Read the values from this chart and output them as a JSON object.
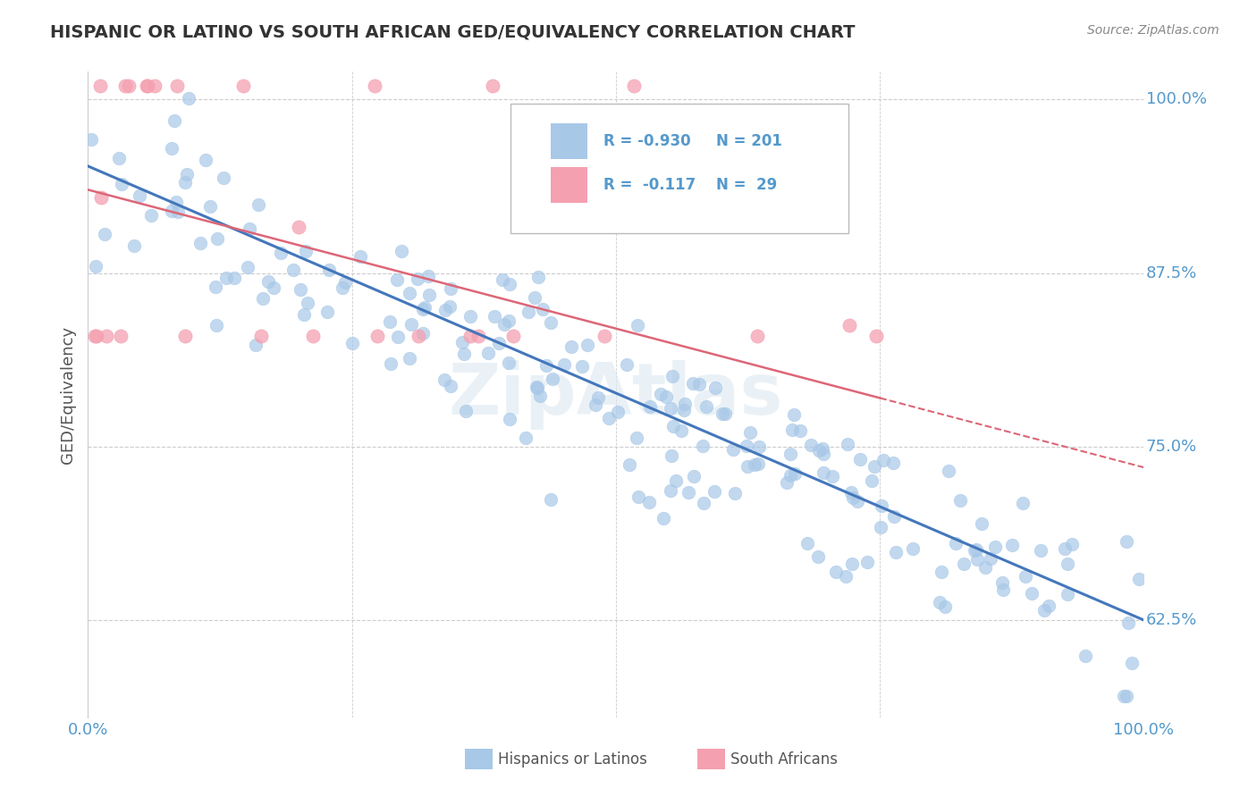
{
  "title": "HISPANIC OR LATINO VS SOUTH AFRICAN GED/EQUIVALENCY CORRELATION CHART",
  "source": "Source: ZipAtlas.com",
  "ylabel": "GED/Equivalency",
  "xlim": [
    0.0,
    1.0
  ],
  "ylim": [
    0.555,
    1.02
  ],
  "yticks": [
    0.625,
    0.75,
    0.875,
    1.0
  ],
  "ytick_labels": [
    "62.5%",
    "75.0%",
    "87.5%",
    "100.0%"
  ],
  "xticks": [
    0.0,
    1.0
  ],
  "xtick_labels": [
    "0.0%",
    "100.0%"
  ],
  "blue_R": "-0.930",
  "blue_N": "201",
  "pink_R": "-0.117",
  "pink_N": "29",
  "blue_color": "#a8c8e8",
  "pink_color": "#f4a0b0",
  "blue_line_color": "#4477bb",
  "pink_line_color": "#dd6677",
  "legend_blue_label": "Hispanics or Latinos",
  "legend_pink_label": "South Africans",
  "title_color": "#333333",
  "axis_label_color": "#5599cc",
  "background_color": "#ffffff",
  "grid_color": "#cccccc",
  "watermark_text": "ZipAtlas",
  "blue_slope": -0.327,
  "blue_intercept": 0.952,
  "pink_slope": -0.2,
  "pink_intercept": 0.935
}
